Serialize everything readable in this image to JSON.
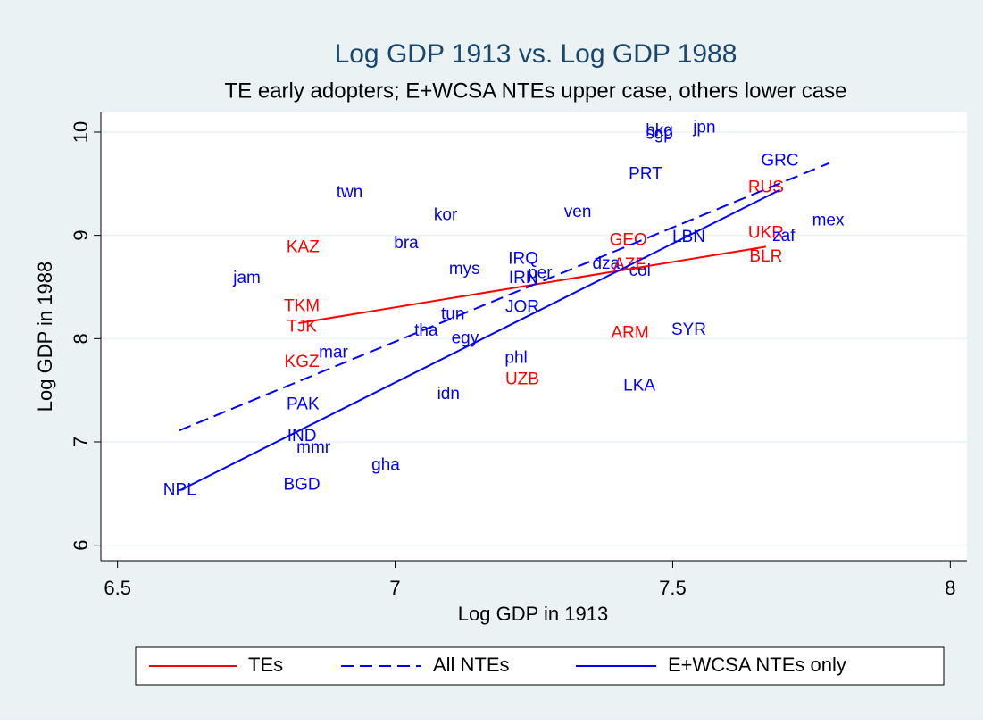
{
  "chart_data": {
    "type": "scatter",
    "title": "Log GDP 1913 vs. Log GDP 1988",
    "subtitle": "TE early adopters; E+WCSA NTEs upper case, others lower case",
    "x_label": "Log GDP in 1913",
    "y_label": "Log GDP in 1988",
    "xlim": [
      6.47,
      8.03
    ],
    "ylim": [
      5.85,
      10.19
    ],
    "xticks": [
      6.5,
      7,
      7.5,
      8
    ],
    "yticks": [
      6,
      7,
      8,
      9,
      10
    ],
    "grid": true,
    "points": {
      "labels": [
        "jpn",
        "hkg",
        "sgp",
        "GRC",
        "PRT",
        "RUS",
        "twn",
        "kor",
        "ven",
        "mex",
        "UKR",
        "zaf",
        "LBN",
        "GEO",
        "KAZ",
        "bra",
        "BLR",
        "IRQ",
        "dza",
        "AZE",
        "mys",
        "per",
        "col",
        "IRN",
        "jam",
        "TKM",
        "JOR",
        "tun",
        "TJK",
        "tha",
        "SYR",
        "ARM",
        "egy",
        "mar",
        "KGZ",
        "phl",
        "UZB",
        "LKA",
        "idn",
        "PAK",
        "IND",
        "mmr",
        "gha",
        "BGD",
        "NPL"
      ],
      "x": [
        7.557,
        7.476,
        7.476,
        7.693,
        7.451,
        7.668,
        6.918,
        7.091,
        7.329,
        7.78,
        7.668,
        7.7,
        7.529,
        7.42,
        6.834,
        7.02,
        7.668,
        7.231,
        7.38,
        7.423,
        7.125,
        7.261,
        7.441,
        7.231,
        6.733,
        6.832,
        7.229,
        7.104,
        6.832,
        7.056,
        7.529,
        7.423,
        7.126,
        6.889,
        6.832,
        7.218,
        7.229,
        7.44,
        7.096,
        6.834,
        6.832,
        6.853,
        6.983,
        6.832,
        6.612
      ],
      "y": [
        10.04,
        10.01,
        9.98,
        9.72,
        9.59,
        9.46,
        9.41,
        9.19,
        9.22,
        9.14,
        9.02,
        8.99,
        8.98,
        8.95,
        8.88,
        8.92,
        8.79,
        8.77,
        8.72,
        8.71,
        8.67,
        8.63,
        8.65,
        8.58,
        8.58,
        8.31,
        8.3,
        8.23,
        8.11,
        8.07,
        8.08,
        8.05,
        8.0,
        7.86,
        7.77,
        7.81,
        7.6,
        7.54,
        7.46,
        7.36,
        7.05,
        6.94,
        6.77,
        6.58,
        6.53
      ],
      "colors": [
        "#0000ff",
        "#0000ff",
        "#0000ff",
        "#0000ff",
        "#0000ff",
        "#ff0000",
        "#0000ff",
        "#0000ff",
        "#0000ff",
        "#0000ff",
        "#ff0000",
        "#0000ff",
        "#0000ff",
        "#ff0000",
        "#ff0000",
        "#0000ff",
        "#ff0000",
        "#0000ff",
        "#0000ff",
        "#ff0000",
        "#0000ff",
        "#0000ff",
        "#0000ff",
        "#0000ff",
        "#0000ff",
        "#ff0000",
        "#0000ff",
        "#0000ff",
        "#ff0000",
        "#0000ff",
        "#0000ff",
        "#ff0000",
        "#0000ff",
        "#0000ff",
        "#ff0000",
        "#0000ff",
        "#ff0000",
        "#0000ff",
        "#0000ff",
        "#0000ff",
        "#0000ff",
        "#0000ff",
        "#0000ff",
        "#0000ff",
        "#0000ff"
      ]
    },
    "series": [
      {
        "name": "TEs",
        "color": "#ff0000",
        "dash": false,
        "x": [
          6.826,
          7.668
        ],
        "values": [
          8.15,
          8.89
        ]
      },
      {
        "name": "All NTEs",
        "color": "#0000ff",
        "dash": true,
        "x": [
          6.611,
          7.782
        ],
        "values": [
          7.11,
          9.7
        ]
      },
      {
        "name": "E+WCSA NTEs only",
        "color": "#0000ff",
        "dash": false,
        "x": [
          6.612,
          7.693
        ],
        "values": [
          6.53,
          9.44
        ]
      }
    ]
  }
}
